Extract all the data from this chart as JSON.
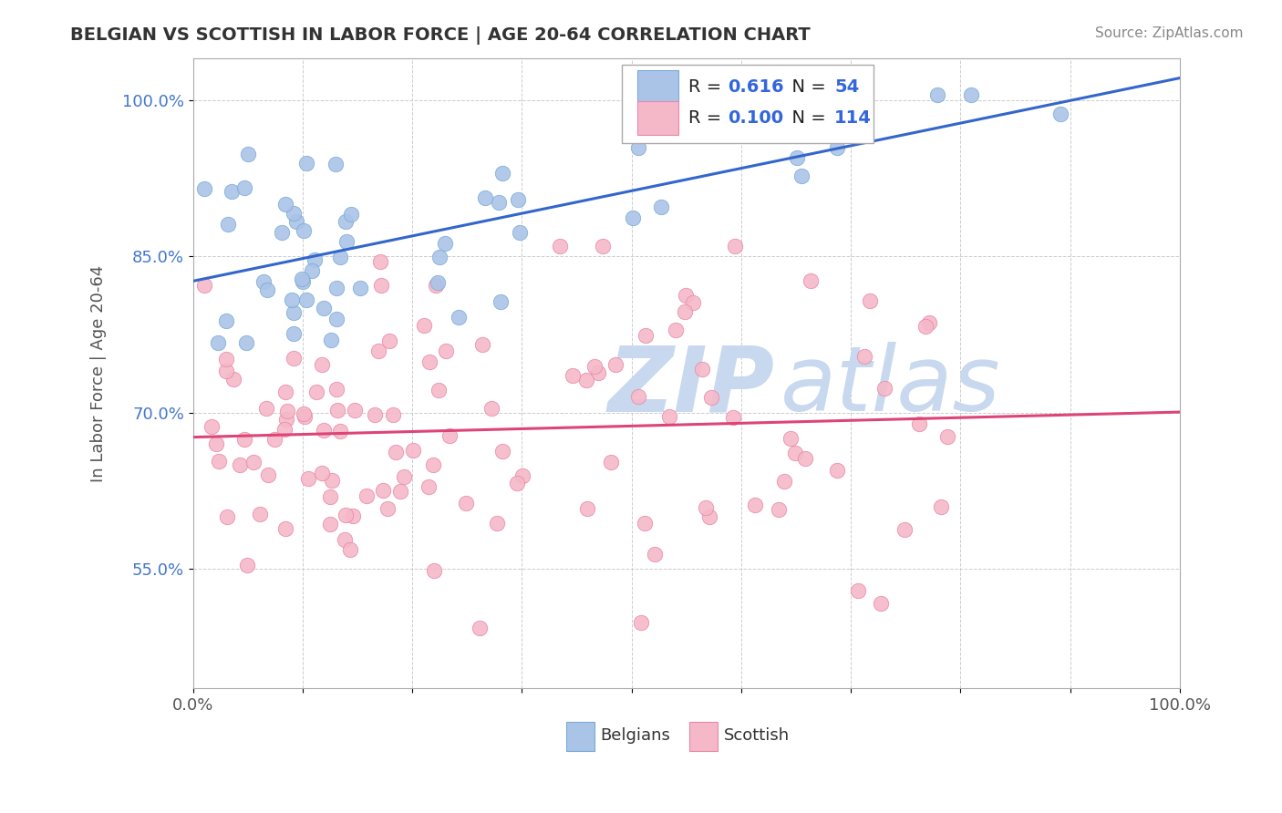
{
  "title": "BELGIAN VS SCOTTISH IN LABOR FORCE | AGE 20-64 CORRELATION CHART",
  "source_text": "Source: ZipAtlas.com",
  "ylabel": "In Labor Force | Age 20-64",
  "xlim": [
    0.0,
    1.0
  ],
  "ylim": [
    0.435,
    1.04
  ],
  "yticks": [
    0.55,
    0.7,
    0.85,
    1.0
  ],
  "ytick_labels": [
    "55.0%",
    "70.0%",
    "85.0%",
    "100.0%"
  ],
  "legend_r_belgian": "0.616",
  "legend_n_belgian": "54",
  "legend_r_scottish": "0.100",
  "legend_n_scottish": "114",
  "belgian_fill": "#aac4e8",
  "belgian_edge": "#7aaad4",
  "scottish_fill": "#f5b8c8",
  "scottish_edge": "#e888a8",
  "trend_belgian_color": "#3366cc",
  "trend_scottish_color": "#dd4477",
  "watermark_zip": "ZIP",
  "watermark_atlas": "atlas",
  "watermark_color": "#c8d8ee",
  "background_color": "#ffffff",
  "grid_color": "#cccccc",
  "tick_color_y": "#4477cc",
  "tick_color_x": "#555555",
  "title_color": "#333333",
  "source_color": "#888888",
  "ylabel_color": "#555555"
}
